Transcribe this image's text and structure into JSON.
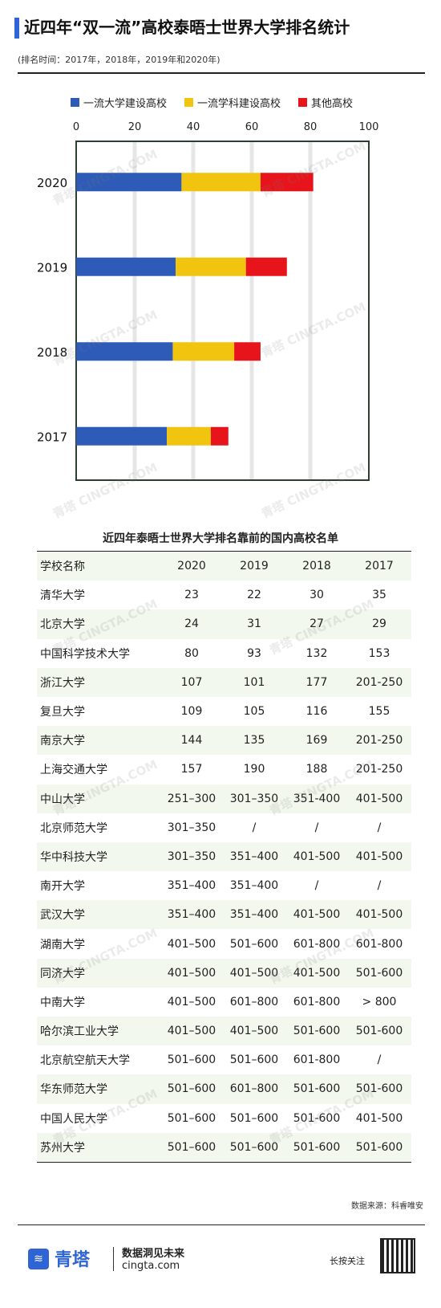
{
  "header": {
    "title": "近四年“双一流”高校泰晤士世界大学排名统计",
    "subtitle": "(排名时间：2017年，2018年，2019年和2020年)"
  },
  "legend": [
    {
      "label": "一流大学建设高校",
      "color": "#2e5bb8"
    },
    {
      "label": "一流学科建设高校",
      "color": "#f1c40f"
    },
    {
      "label": "其他高校",
      "color": "#e8141c"
    }
  ],
  "chart_data": {
    "type": "bar",
    "orientation": "horizontal",
    "stacked": true,
    "categories": [
      "2020",
      "2019",
      "2018",
      "2017"
    ],
    "series": [
      {
        "name": "一流大学建设高校",
        "values": [
          36,
          34,
          33,
          31
        ],
        "color": "#2e5bb8"
      },
      {
        "name": "一流学科建设高校",
        "values": [
          27,
          24,
          21,
          15
        ],
        "color": "#f1c40f"
      },
      {
        "name": "其他高校",
        "values": [
          18,
          14,
          9,
          6
        ],
        "color": "#e8141c"
      }
    ],
    "xlim": [
      0,
      100
    ],
    "xticks": [
      0,
      20,
      40,
      60,
      80,
      100
    ],
    "grid": true,
    "legend_position": "top"
  },
  "table": {
    "title": "近四年泰晤士世界大学排名靠前的国内高校名单",
    "headers": [
      "学校名称",
      "2020",
      "2019",
      "2018",
      "2017"
    ],
    "rows": [
      [
        "清华大学",
        "23",
        "22",
        "30",
        "35"
      ],
      [
        "北京大学",
        "24",
        "31",
        "27",
        "29"
      ],
      [
        "中国科学技术大学",
        "80",
        "93",
        "132",
        "153"
      ],
      [
        "浙江大学",
        "107",
        "101",
        "177",
        "201-250"
      ],
      [
        "复旦大学",
        "109",
        "105",
        "116",
        "155"
      ],
      [
        "南京大学",
        "144",
        "135",
        "169",
        "201-250"
      ],
      [
        "上海交通大学",
        "157",
        "190",
        "188",
        "201-250"
      ],
      [
        "中山大学",
        "251–300",
        "301–350",
        "351-400",
        "401-500"
      ],
      [
        "北京师范大学",
        "301–350",
        "/",
        "/",
        "/"
      ],
      [
        "华中科技大学",
        "301–350",
        "351–400",
        "401-500",
        "401-500"
      ],
      [
        "南开大学",
        "351–400",
        "351–400",
        "/",
        "/"
      ],
      [
        "武汉大学",
        "351–400",
        "351–400",
        "401-500",
        "401-500"
      ],
      [
        "湖南大学",
        "401–500",
        "501–600",
        "601-800",
        "601-800"
      ],
      [
        "同济大学",
        "401–500",
        "401–500",
        "401-500",
        "501-600"
      ],
      [
        "中南大学",
        "401–500",
        "601–800",
        "601-800",
        "> 800"
      ],
      [
        "哈尔滨工业大学",
        "401–500",
        "401–500",
        "501-600",
        "501-600"
      ],
      [
        "北京航空航天大学",
        "501–600",
        "501–600",
        "601-800",
        "/"
      ],
      [
        "华东师范大学",
        "501–600",
        "601–800",
        "501-600",
        "501-600"
      ],
      [
        "中国人民大学",
        "501–600",
        "501–600",
        "501-600",
        "401-500"
      ],
      [
        "苏州大学",
        "501–600",
        "501–600",
        "501-600",
        "501-600"
      ]
    ]
  },
  "source": "数据来源：科睿唯安",
  "footer": {
    "logo_text": "青塔",
    "slogan": "数据洞见未来",
    "website": "cingta.com",
    "follow": "长按关注"
  },
  "watermark": "青塔 CINGTA.COM"
}
